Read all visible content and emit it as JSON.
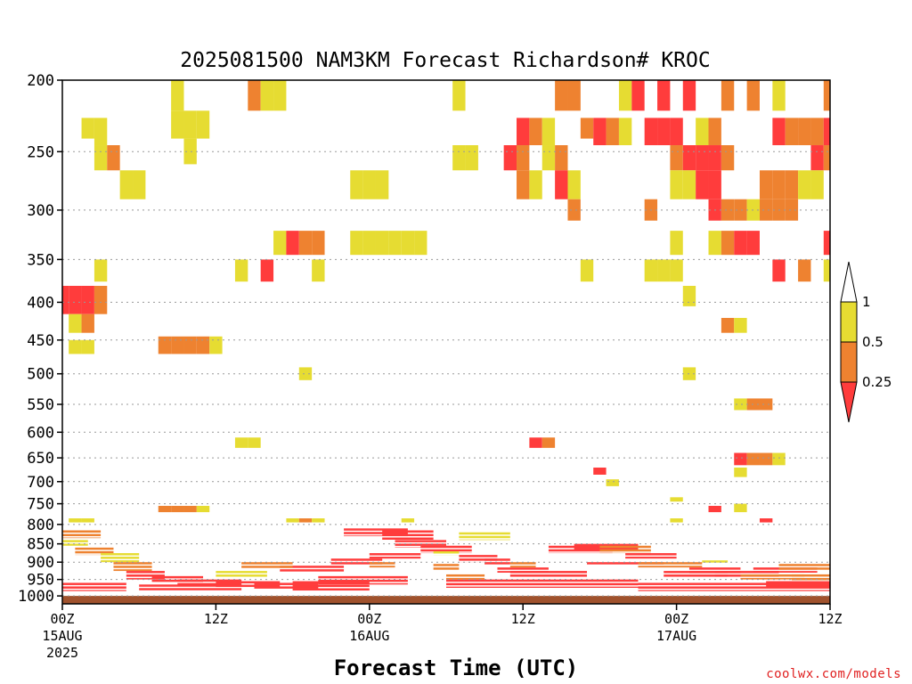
{
  "chart_data": {
    "type": "heatmap",
    "title": "2025081500 NAM3KM Forecast Richardson# KROC",
    "xlabel": "Forecast Time (UTC)",
    "ylabel": "",
    "xlim": [
      0,
      60
    ],
    "ylim": [
      1025,
      200
    ],
    "y_scale": "pressure (log)",
    "x_ticks": [
      {
        "hour": 0,
        "lines": [
          "00Z",
          "15AUG",
          "2025"
        ]
      },
      {
        "hour": 12,
        "lines": [
          "12Z"
        ]
      },
      {
        "hour": 24,
        "lines": [
          "00Z",
          "16AUG"
        ]
      },
      {
        "hour": 36,
        "lines": [
          "12Z"
        ]
      },
      {
        "hour": 48,
        "lines": [
          "00Z",
          "17AUG"
        ]
      },
      {
        "hour": 60,
        "lines": [
          "12Z"
        ]
      }
    ],
    "y_ticks": [
      200,
      250,
      300,
      350,
      400,
      450,
      500,
      550,
      600,
      650,
      700,
      750,
      800,
      850,
      900,
      950,
      1000
    ],
    "grid": "dotted horizontal at pressure ticks",
    "legend": {
      "placement": "right",
      "bins": [
        {
          "label": "<0.25",
          "color": "#ff3c3c"
        },
        {
          "label": "0.25-0.5",
          "color": "#ee8230"
        },
        {
          "label": "0.5-1",
          "color": "#e6dc32"
        },
        {
          "label": ">1",
          "color": "#ffffff"
        }
      ],
      "labels": [
        "1",
        "0.5",
        "0.25"
      ]
    },
    "ground": {
      "color": "#a0522d",
      "from_p": 1000
    },
    "cells": [
      [
        9,
        200,
        220,
        2
      ],
      [
        9,
        220,
        240,
        2
      ],
      [
        10,
        220,
        240,
        2
      ],
      [
        11,
        220,
        240,
        2
      ],
      [
        10,
        240,
        260,
        2
      ],
      [
        15,
        200,
        220,
        1
      ],
      [
        16,
        200,
        220,
        2
      ],
      [
        17,
        200,
        220,
        2
      ],
      [
        31,
        200,
        220,
        2
      ],
      [
        39,
        200,
        220,
        1
      ],
      [
        40,
        200,
        220,
        1
      ],
      [
        44,
        200,
        220,
        2
      ],
      [
        45,
        200,
        220,
        0
      ],
      [
        47,
        200,
        220,
        0
      ],
      [
        49,
        200,
        220,
        0
      ],
      [
        52,
        200,
        220,
        1
      ],
      [
        54,
        200,
        220,
        1
      ],
      [
        56,
        200,
        220,
        2
      ],
      [
        60,
        200,
        220,
        1
      ],
      [
        2,
        225,
        240,
        2
      ],
      [
        3,
        225,
        245,
        2
      ],
      [
        36,
        225,
        245,
        0
      ],
      [
        37,
        225,
        245,
        1
      ],
      [
        38,
        225,
        245,
        2
      ],
      [
        41,
        225,
        240,
        1
      ],
      [
        42,
        225,
        245,
        0
      ],
      [
        43,
        225,
        245,
        1
      ],
      [
        44,
        225,
        245,
        2
      ],
      [
        46,
        225,
        245,
        0
      ],
      [
        47,
        225,
        245,
        0
      ],
      [
        48,
        225,
        245,
        0
      ],
      [
        50,
        225,
        245,
        2
      ],
      [
        51,
        225,
        245,
        1
      ],
      [
        56,
        225,
        245,
        0
      ],
      [
        57,
        225,
        245,
        1
      ],
      [
        58,
        225,
        245,
        1
      ],
      [
        59,
        225,
        245,
        1
      ],
      [
        60,
        225,
        245,
        0
      ],
      [
        3,
        245,
        265,
        2
      ],
      [
        4,
        245,
        265,
        1
      ],
      [
        31,
        245,
        265,
        2
      ],
      [
        32,
        245,
        265,
        2
      ],
      [
        35,
        245,
        265,
        0
      ],
      [
        36,
        245,
        265,
        1
      ],
      [
        38,
        245,
        265,
        2
      ],
      [
        39,
        245,
        265,
        1
      ],
      [
        48,
        245,
        265,
        1
      ],
      [
        49,
        245,
        265,
        0
      ],
      [
        50,
        245,
        265,
        0
      ],
      [
        51,
        245,
        265,
        0
      ],
      [
        52,
        245,
        265,
        1
      ],
      [
        59,
        245,
        265,
        0
      ],
      [
        60,
        245,
        265,
        1
      ],
      [
        5,
        265,
        290,
        2
      ],
      [
        6,
        265,
        290,
        2
      ],
      [
        23,
        265,
        290,
        2
      ],
      [
        24,
        265,
        290,
        2
      ],
      [
        25,
        265,
        290,
        2
      ],
      [
        36,
        265,
        290,
        1
      ],
      [
        37,
        265,
        290,
        2
      ],
      [
        39,
        265,
        290,
        0
      ],
      [
        40,
        265,
        290,
        2
      ],
      [
        48,
        265,
        290,
        2
      ],
      [
        49,
        265,
        290,
        2
      ],
      [
        50,
        265,
        290,
        0
      ],
      [
        51,
        265,
        290,
        0
      ],
      [
        55,
        265,
        290,
        1
      ],
      [
        56,
        265,
        290,
        1
      ],
      [
        57,
        265,
        290,
        1
      ],
      [
        58,
        265,
        290,
        2
      ],
      [
        59,
        265,
        290,
        2
      ],
      [
        40,
        290,
        310,
        1
      ],
      [
        46,
        290,
        310,
        1
      ],
      [
        51,
        290,
        310,
        0
      ],
      [
        52,
        290,
        310,
        1
      ],
      [
        53,
        290,
        310,
        1
      ],
      [
        54,
        290,
        310,
        2
      ],
      [
        55,
        290,
        310,
        1
      ],
      [
        56,
        290,
        310,
        1
      ],
      [
        57,
        290,
        310,
        1
      ],
      [
        17,
        320,
        345,
        2
      ],
      [
        18,
        320,
        345,
        0
      ],
      [
        19,
        320,
        345,
        1
      ],
      [
        20,
        320,
        345,
        1
      ],
      [
        23,
        320,
        345,
        2
      ],
      [
        24,
        320,
        345,
        2
      ],
      [
        25,
        320,
        345,
        2
      ],
      [
        26,
        320,
        345,
        2
      ],
      [
        27,
        320,
        345,
        2
      ],
      [
        28,
        320,
        345,
        2
      ],
      [
        48,
        320,
        345,
        2
      ],
      [
        51,
        320,
        345,
        2
      ],
      [
        52,
        320,
        345,
        1
      ],
      [
        53,
        320,
        345,
        0
      ],
      [
        54,
        320,
        345,
        0
      ],
      [
        60,
        320,
        345,
        0
      ],
      [
        3,
        350,
        375,
        2
      ],
      [
        14,
        350,
        375,
        2
      ],
      [
        16,
        350,
        375,
        0
      ],
      [
        20,
        350,
        375,
        2
      ],
      [
        41,
        350,
        375,
        2
      ],
      [
        46,
        350,
        375,
        2
      ],
      [
        47,
        350,
        375,
        2
      ],
      [
        48,
        350,
        375,
        2
      ],
      [
        56,
        350,
        375,
        0
      ],
      [
        58,
        350,
        375,
        1
      ],
      [
        60,
        350,
        375,
        2
      ],
      [
        0,
        380,
        415,
        0
      ],
      [
        1,
        380,
        415,
        0
      ],
      [
        2,
        380,
        415,
        0
      ],
      [
        3,
        380,
        415,
        1
      ],
      [
        1,
        415,
        440,
        2
      ],
      [
        2,
        415,
        440,
        1
      ],
      [
        49,
        380,
        405,
        2
      ],
      [
        52,
        420,
        440,
        1
      ],
      [
        53,
        420,
        440,
        2
      ],
      [
        1,
        450,
        470,
        2
      ],
      [
        2,
        450,
        470,
        2
      ],
      [
        8,
        445,
        470,
        1
      ],
      [
        9,
        445,
        470,
        1
      ],
      [
        10,
        445,
        470,
        1
      ],
      [
        11,
        445,
        470,
        1
      ],
      [
        12,
        445,
        470,
        2
      ],
      [
        19,
        490,
        510,
        2
      ],
      [
        49,
        490,
        510,
        2
      ],
      [
        53,
        540,
        560,
        2
      ],
      [
        54,
        540,
        560,
        1
      ],
      [
        55,
        540,
        560,
        1
      ],
      [
        14,
        610,
        630,
        2
      ],
      [
        15,
        610,
        630,
        2
      ],
      [
        37,
        610,
        630,
        0
      ],
      [
        38,
        610,
        630,
        1
      ],
      [
        53,
        640,
        665,
        0
      ],
      [
        54,
        640,
        665,
        1
      ],
      [
        55,
        640,
        665,
        1
      ],
      [
        56,
        640,
        665,
        2
      ],
      [
        53,
        670,
        690,
        2
      ],
      [
        42,
        670,
        685,
        0
      ],
      [
        43,
        695,
        710,
        2
      ],
      [
        48,
        735,
        745,
        2
      ],
      [
        51,
        755,
        770,
        0
      ],
      [
        53,
        750,
        770,
        2
      ],
      [
        8,
        755,
        770,
        1
      ],
      [
        9,
        755,
        770,
        1
      ],
      [
        10,
        755,
        770,
        1
      ],
      [
        11,
        755,
        770,
        2
      ],
      [
        1,
        785,
        795,
        2
      ],
      [
        2,
        785,
        795,
        2
      ],
      [
        18,
        785,
        795,
        2
      ],
      [
        19,
        785,
        795,
        1
      ],
      [
        20,
        785,
        795,
        2
      ],
      [
        27,
        785,
        795,
        2
      ],
      [
        55,
        785,
        795,
        0
      ],
      [
        48,
        785,
        795,
        2
      ]
    ],
    "bands": [
      [
        0,
        3,
        815,
        835,
        1
      ],
      [
        0,
        2,
        840,
        855,
        2
      ],
      [
        1,
        4,
        860,
        880,
        1
      ],
      [
        3,
        6,
        875,
        900,
        2
      ],
      [
        4,
        7,
        900,
        925,
        1
      ],
      [
        5,
        8,
        925,
        950,
        0
      ],
      [
        7,
        11,
        940,
        960,
        0
      ],
      [
        9,
        14,
        950,
        970,
        0
      ],
      [
        12,
        17,
        955,
        975,
        0
      ],
      [
        15,
        20,
        960,
        980,
        0
      ],
      [
        18,
        24,
        955,
        985,
        0
      ],
      [
        20,
        27,
        940,
        965,
        0
      ],
      [
        17,
        22,
        910,
        930,
        0
      ],
      [
        21,
        25,
        890,
        910,
        0
      ],
      [
        24,
        28,
        875,
        890,
        0
      ],
      [
        22,
        27,
        810,
        830,
        0
      ],
      [
        25,
        29,
        815,
        840,
        0
      ],
      [
        26,
        30,
        840,
        860,
        0
      ],
      [
        28,
        32,
        855,
        875,
        0
      ],
      [
        29,
        31,
        870,
        880,
        2
      ],
      [
        31,
        35,
        820,
        840,
        2
      ],
      [
        31,
        34,
        880,
        900,
        0
      ],
      [
        33,
        35,
        890,
        910,
        0
      ],
      [
        34,
        38,
        915,
        930,
        0
      ],
      [
        35,
        41,
        925,
        945,
        0
      ],
      [
        38,
        43,
        855,
        875,
        0
      ],
      [
        40,
        45,
        850,
        870,
        0
      ],
      [
        42,
        46,
        855,
        875,
        1
      ],
      [
        44,
        48,
        875,
        890,
        0
      ],
      [
        41,
        47,
        900,
        910,
        0
      ],
      [
        45,
        50,
        900,
        915,
        1
      ],
      [
        47,
        52,
        925,
        945,
        0
      ],
      [
        49,
        53,
        915,
        935,
        0
      ],
      [
        51,
        56,
        925,
        945,
        0
      ],
      [
        53,
        58,
        935,
        950,
        1
      ],
      [
        54,
        59,
        915,
        930,
        0
      ],
      [
        56,
        60,
        905,
        925,
        1
      ],
      [
        57,
        60,
        935,
        960,
        1
      ],
      [
        55,
        60,
        955,
        975,
        0
      ],
      [
        45,
        60,
        960,
        985,
        0
      ],
      [
        30,
        45,
        950,
        975,
        0
      ],
      [
        0,
        5,
        960,
        985,
        0
      ],
      [
        6,
        14,
        965,
        985,
        0
      ],
      [
        12,
        16,
        925,
        945,
        2
      ],
      [
        14,
        18,
        900,
        920,
        1
      ],
      [
        29,
        31,
        905,
        925,
        1
      ],
      [
        30,
        33,
        935,
        950,
        1
      ],
      [
        35,
        37,
        900,
        915,
        1
      ],
      [
        24,
        26,
        900,
        915,
        1
      ],
      [
        50,
        52,
        895,
        905,
        2
      ]
    ]
  },
  "credit": {
    "text": "coolwx.com/models",
    "color": "#e02020"
  }
}
